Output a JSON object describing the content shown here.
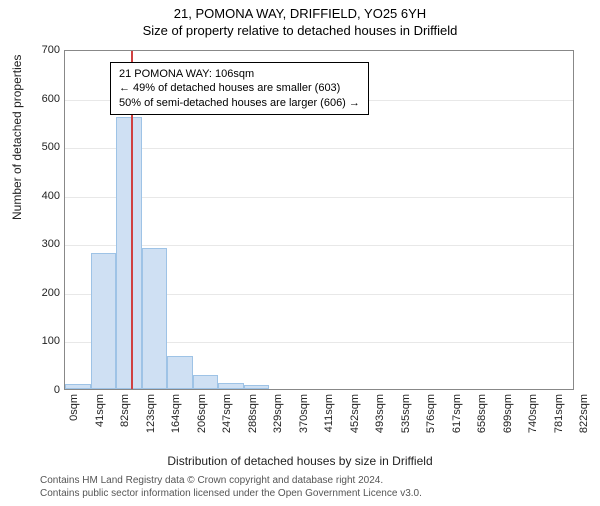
{
  "header": {
    "address": "21, POMONA WAY, DRIFFIELD, YO25 6YH",
    "subtitle": "Size of property relative to detached houses in Driffield"
  },
  "chart": {
    "type": "histogram",
    "ylim": [
      0,
      700
    ],
    "ytick_step": 100,
    "yticks": [
      0,
      100,
      200,
      300,
      400,
      500,
      600,
      700
    ],
    "xtick_interval": 41,
    "num_xticks": 21,
    "xtick_labels": [
      "0sqm",
      "41sqm",
      "82sqm",
      "123sqm",
      "164sqm",
      "206sqm",
      "247sqm",
      "288sqm",
      "329sqm",
      "370sqm",
      "411sqm",
      "452sqm",
      "493sqm",
      "535sqm",
      "576sqm",
      "617sqm",
      "658sqm",
      "699sqm",
      "740sqm",
      "781sqm",
      "822sqm"
    ],
    "bars": [
      {
        "bin": 0,
        "value": 10
      },
      {
        "bin": 1,
        "value": 280
      },
      {
        "bin": 2,
        "value": 560
      },
      {
        "bin": 3,
        "value": 290
      },
      {
        "bin": 4,
        "value": 68
      },
      {
        "bin": 5,
        "value": 28
      },
      {
        "bin": 6,
        "value": 12
      },
      {
        "bin": 7,
        "value": 8
      }
    ],
    "bar_fill": "#cfe0f3",
    "bar_stroke": "#9ec3e6",
    "grid_color": "#e8e8e8",
    "axis_color": "#888888",
    "background_color": "#ffffff",
    "marker": {
      "value_sqm": 106,
      "color": "#d04040"
    },
    "ylabel": "Number of detached properties",
    "xlabel": "Distribution of detached houses by size in Driffield",
    "label_fontsize": 12,
    "tick_fontsize": 11
  },
  "annotation": {
    "line1": "21 POMONA WAY: 106sqm",
    "line2": "← 49% of detached houses are smaller (603)",
    "line3": "50% of semi-detached houses are larger (606) →"
  },
  "footer": {
    "line1": "Contains HM Land Registry data © Crown copyright and database right 2024.",
    "line2": "Contains public sector information licensed under the Open Government Licence v3.0."
  }
}
